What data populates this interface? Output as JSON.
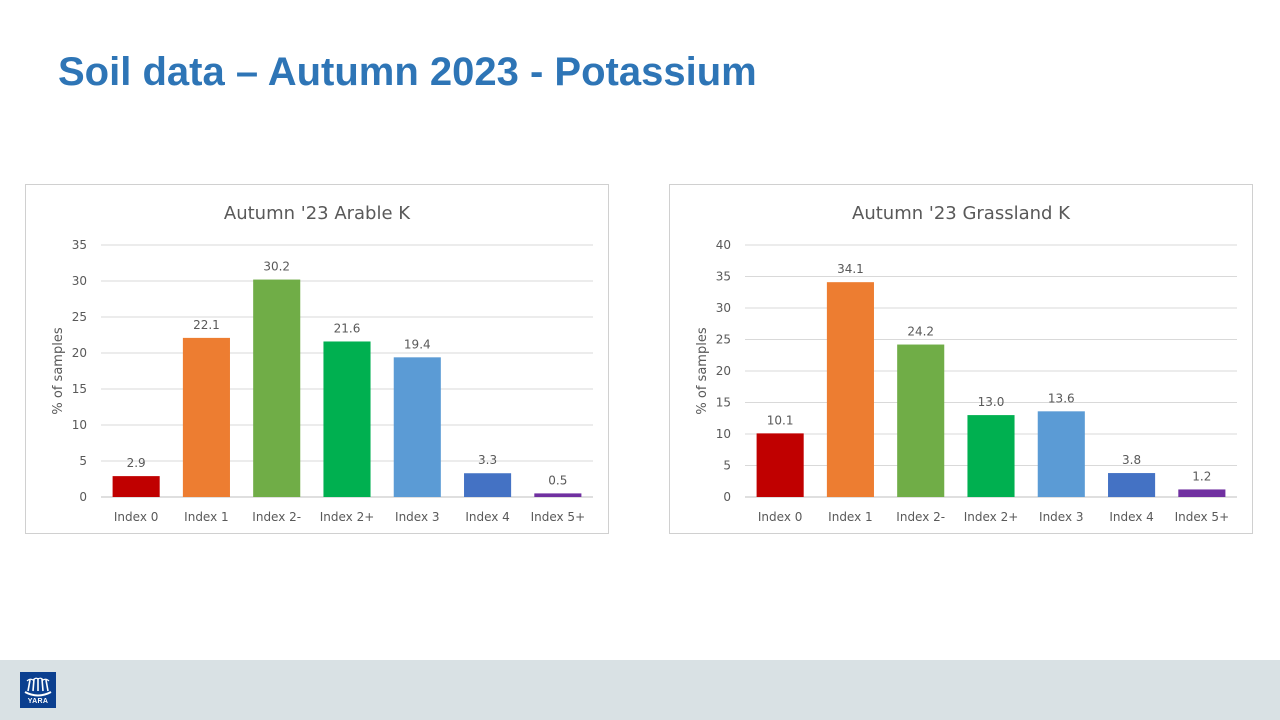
{
  "slide": {
    "title": "Soil data – Autumn 2023 - Potassium",
    "logo_text": "YARA"
  },
  "colors": {
    "title": "#2e75b6",
    "footer": "#d9e1e4",
    "logo": "#0b3f8f",
    "bars": [
      "#c00000",
      "#ed7d31",
      "#70ad47",
      "#00b050",
      "#5b9bd5",
      "#4472c4",
      "#7030a0"
    ]
  },
  "chart_data": [
    {
      "type": "bar",
      "title": "Autumn '23 Arable K",
      "ylabel": "% of samples",
      "xlabel": "",
      "categories": [
        "Index 0",
        "Index 1",
        "Index 2-",
        "Index 2+",
        "Index 3",
        "Index 4",
        "Index 5+"
      ],
      "values": [
        2.9,
        22.1,
        30.2,
        21.6,
        19.4,
        3.3,
        0.5
      ],
      "data_labels": [
        "2.9",
        "22.1",
        "30.2",
        "21.6",
        "19.4",
        "3.3",
        "0.5"
      ],
      "y_ticks": [
        0,
        5,
        10,
        15,
        20,
        25,
        30,
        35
      ],
      "ylim": [
        0,
        35
      ],
      "grid": true,
      "legend": "none"
    },
    {
      "type": "bar",
      "title": "Autumn '23 Grassland K",
      "ylabel": "% of samples",
      "xlabel": "",
      "categories": [
        "Index 0",
        "Index 1",
        "Index 2-",
        "Index 2+",
        "Index 3",
        "Index 4",
        "Index 5+"
      ],
      "values": [
        10.1,
        34.1,
        24.2,
        13.0,
        13.6,
        3.8,
        1.2
      ],
      "data_labels": [
        "10.1",
        "34.1",
        "24.2",
        "13.0",
        "13.6",
        "3.8",
        "1.2"
      ],
      "y_ticks": [
        0,
        5,
        10,
        15,
        20,
        25,
        30,
        35,
        40
      ],
      "ylim": [
        0,
        40
      ],
      "grid": true,
      "legend": "none"
    }
  ]
}
